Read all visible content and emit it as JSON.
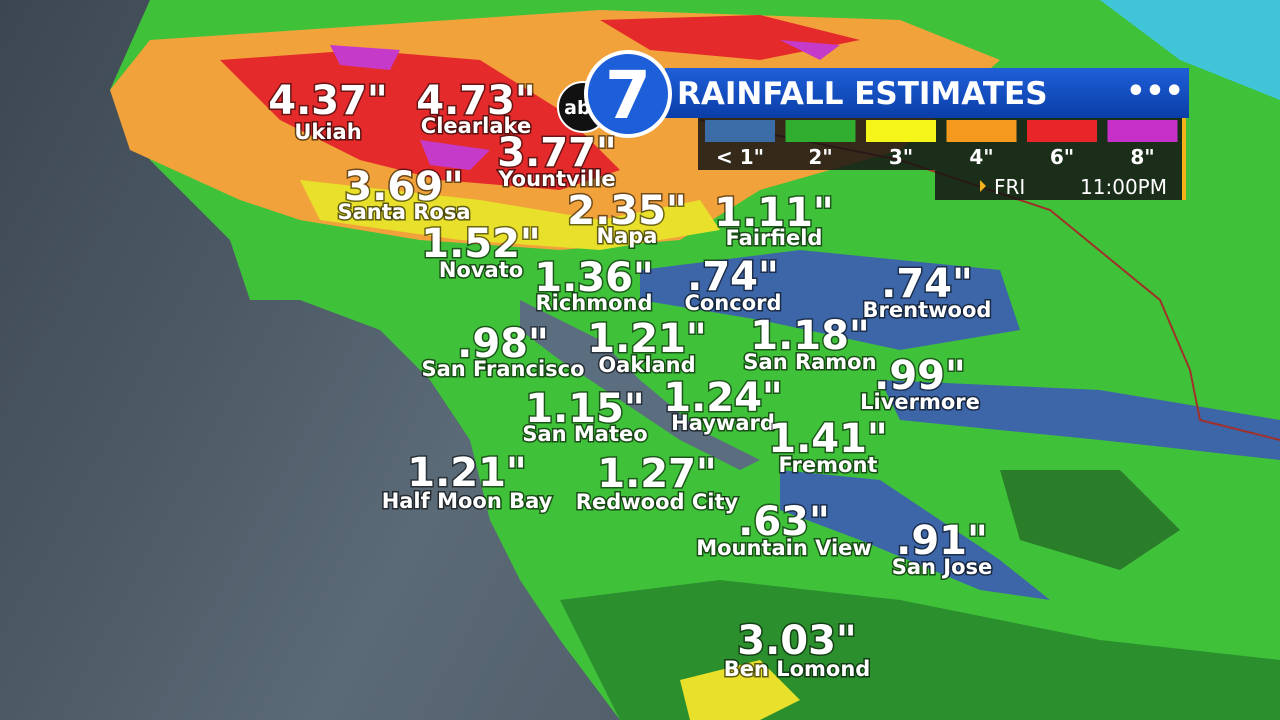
{
  "header": {
    "title": "RAINFALL ESTIMATES",
    "logo": {
      "network": "abc",
      "channel": "7"
    }
  },
  "legend": [
    {
      "label": "< 1\"",
      "color": "#3b6ca6"
    },
    {
      "label": "2\"",
      "color": "#2fae2f"
    },
    {
      "label": "3\"",
      "color": "#f5f51a"
    },
    {
      "label": "4\"",
      "color": "#f59a1e"
    },
    {
      "label": "6\"",
      "color": "#e8262a"
    },
    {
      "label": "8\"",
      "color": "#c630c8"
    }
  ],
  "time": {
    "day": "FRI",
    "clock": "11:00PM"
  },
  "locations": [
    {
      "name": "Ukiah",
      "amount": "4.37\""
    },
    {
      "name": "Clearlake",
      "amount": "4.73\""
    },
    {
      "name": "Yountville",
      "amount": "3.77\""
    },
    {
      "name": "Santa Rosa",
      "amount": "3.69\""
    },
    {
      "name": "Napa",
      "amount": "2.35\""
    },
    {
      "name": "Fairfield",
      "amount": "1.11\""
    },
    {
      "name": "Novato",
      "amount": "1.52\""
    },
    {
      "name": "Richmond",
      "amount": "1.36\""
    },
    {
      "name": "Concord",
      "amount": ".74\""
    },
    {
      "name": "Brentwood",
      "amount": ".74\""
    },
    {
      "name": "San Francisco",
      "amount": ".98\""
    },
    {
      "name": "Oakland",
      "amount": "1.21\""
    },
    {
      "name": "San Ramon",
      "amount": "1.18\""
    },
    {
      "name": "Livermore",
      "amount": ".99\""
    },
    {
      "name": "San Mateo",
      "amount": "1.15\""
    },
    {
      "name": "Hayward",
      "amount": "1.24\""
    },
    {
      "name": "Fremont",
      "amount": "1.41\""
    },
    {
      "name": "Half Moon Bay",
      "amount": "1.21\""
    },
    {
      "name": "Redwood City",
      "amount": "1.27\""
    },
    {
      "name": "Mountain View",
      "amount": ".63\""
    },
    {
      "name": "San Jose",
      "amount": ".91\""
    },
    {
      "name": "Ben Lomond",
      "amount": "3.03\""
    }
  ]
}
